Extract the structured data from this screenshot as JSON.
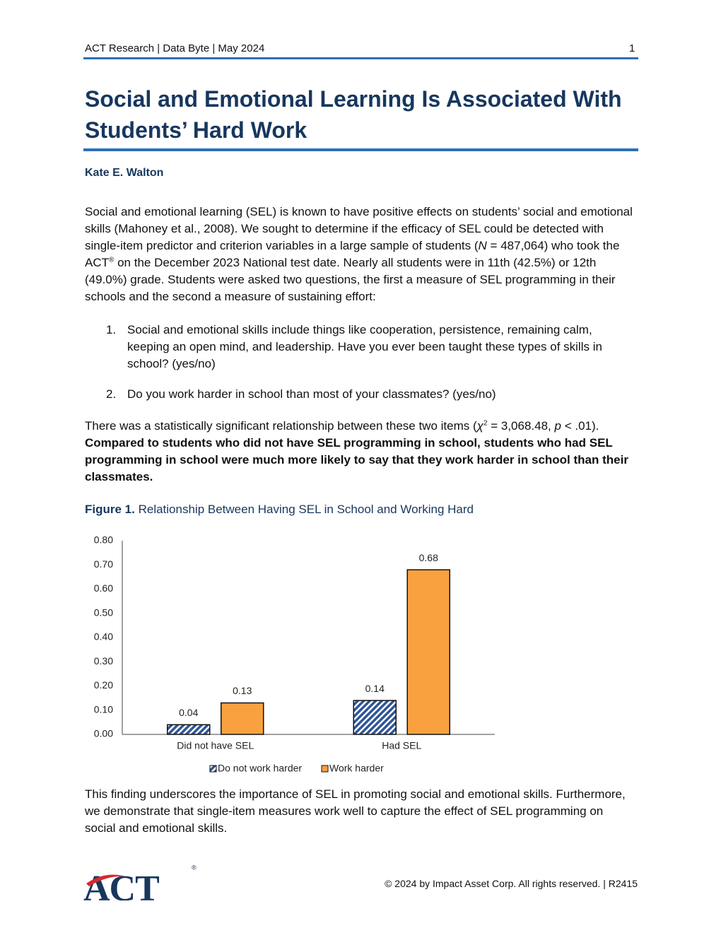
{
  "header": {
    "left": "ACT Research | Data Byte | May 2024",
    "page": "1"
  },
  "title": "Social and Emotional Learning Is Associated With Students’ Hard Work",
  "author": "Kate E. Walton",
  "intro": [
    "Social and emotional learning (SEL) is known to have positive effects on students’ social and emotional skills (Mahoney et al., 2008). We sought to determine if the efficacy of SEL could be detected with single-item predictor and criterion variables in a large sample of students (",
    "N",
    " = 487,064) who took the ACT",
    "®",
    " on the December 2023 National test date. Nearly all students were in 11th (42.5%) or 12th (49.0%) grade. Students were asked two questions, the first a measure of SEL programming in their schools and the second a measure of sustaining effort:"
  ],
  "questions": [
    {
      "number": "1.",
      "text": "Social and emotional skills include things like cooperation, persistence, remaining calm, keeping an open mind, and leadership. Have you ever been taught these types of skills in school? (yes/no)"
    },
    {
      "number": "2.",
      "text": "Do you work harder in school than most of your classmates? (yes/no)"
    }
  ],
  "result": [
    "There was a statistically significant relationship between these two items (",
    "χ",
    "2",
    " = 3,068.48, ",
    "p",
    " < .01). ",
    "Compared to students who did not have SEL programming in school, students who had SEL programming in school were much more likely to say that they work harder in school than their classmates."
  ],
  "figure": {
    "label": "Figure 1.",
    "caption": "Relationship Between Having SEL in School and Working Hard"
  },
  "chart_data": {
    "type": "bar",
    "categories": [
      "Did not have SEL",
      "Had SEL"
    ],
    "series": [
      {
        "name": "Do not work harder",
        "color": "#2f5597",
        "pattern": "hatch",
        "values": [
          0.04,
          0.14
        ]
      },
      {
        "name": "Work harder",
        "color": "#f9a13f",
        "values": [
          0.13,
          0.68
        ]
      }
    ],
    "ylim": [
      0,
      0.8
    ],
    "yticks": [
      {
        "value": 0,
        "label": "0.00"
      },
      {
        "value": 0.1,
        "label": "0.10"
      },
      {
        "value": 0.2,
        "label": "0.20"
      },
      {
        "value": 0.3,
        "label": "0.30"
      },
      {
        "value": 0.4,
        "label": "0.40"
      },
      {
        "value": 0.5,
        "label": "0.50"
      },
      {
        "value": 0.6,
        "label": "0.60"
      },
      {
        "value": 0.7,
        "label": "0.70"
      },
      {
        "value": 0.8,
        "label": "0.80"
      }
    ],
    "grid": false,
    "data_labels": true,
    "legend": "bottom"
  },
  "conclusion": "This finding underscores the importance of SEL in promoting social and emotional skills. Furthermore, we demonstrate that single-item measures work well to capture the effect of SEL programming on social and emotional skills.",
  "footer": {
    "logo": "ACT",
    "logo_mark": "®",
    "copyright": "© 2024 by Impact Asset Corp. All rights reserved. | R2415"
  }
}
